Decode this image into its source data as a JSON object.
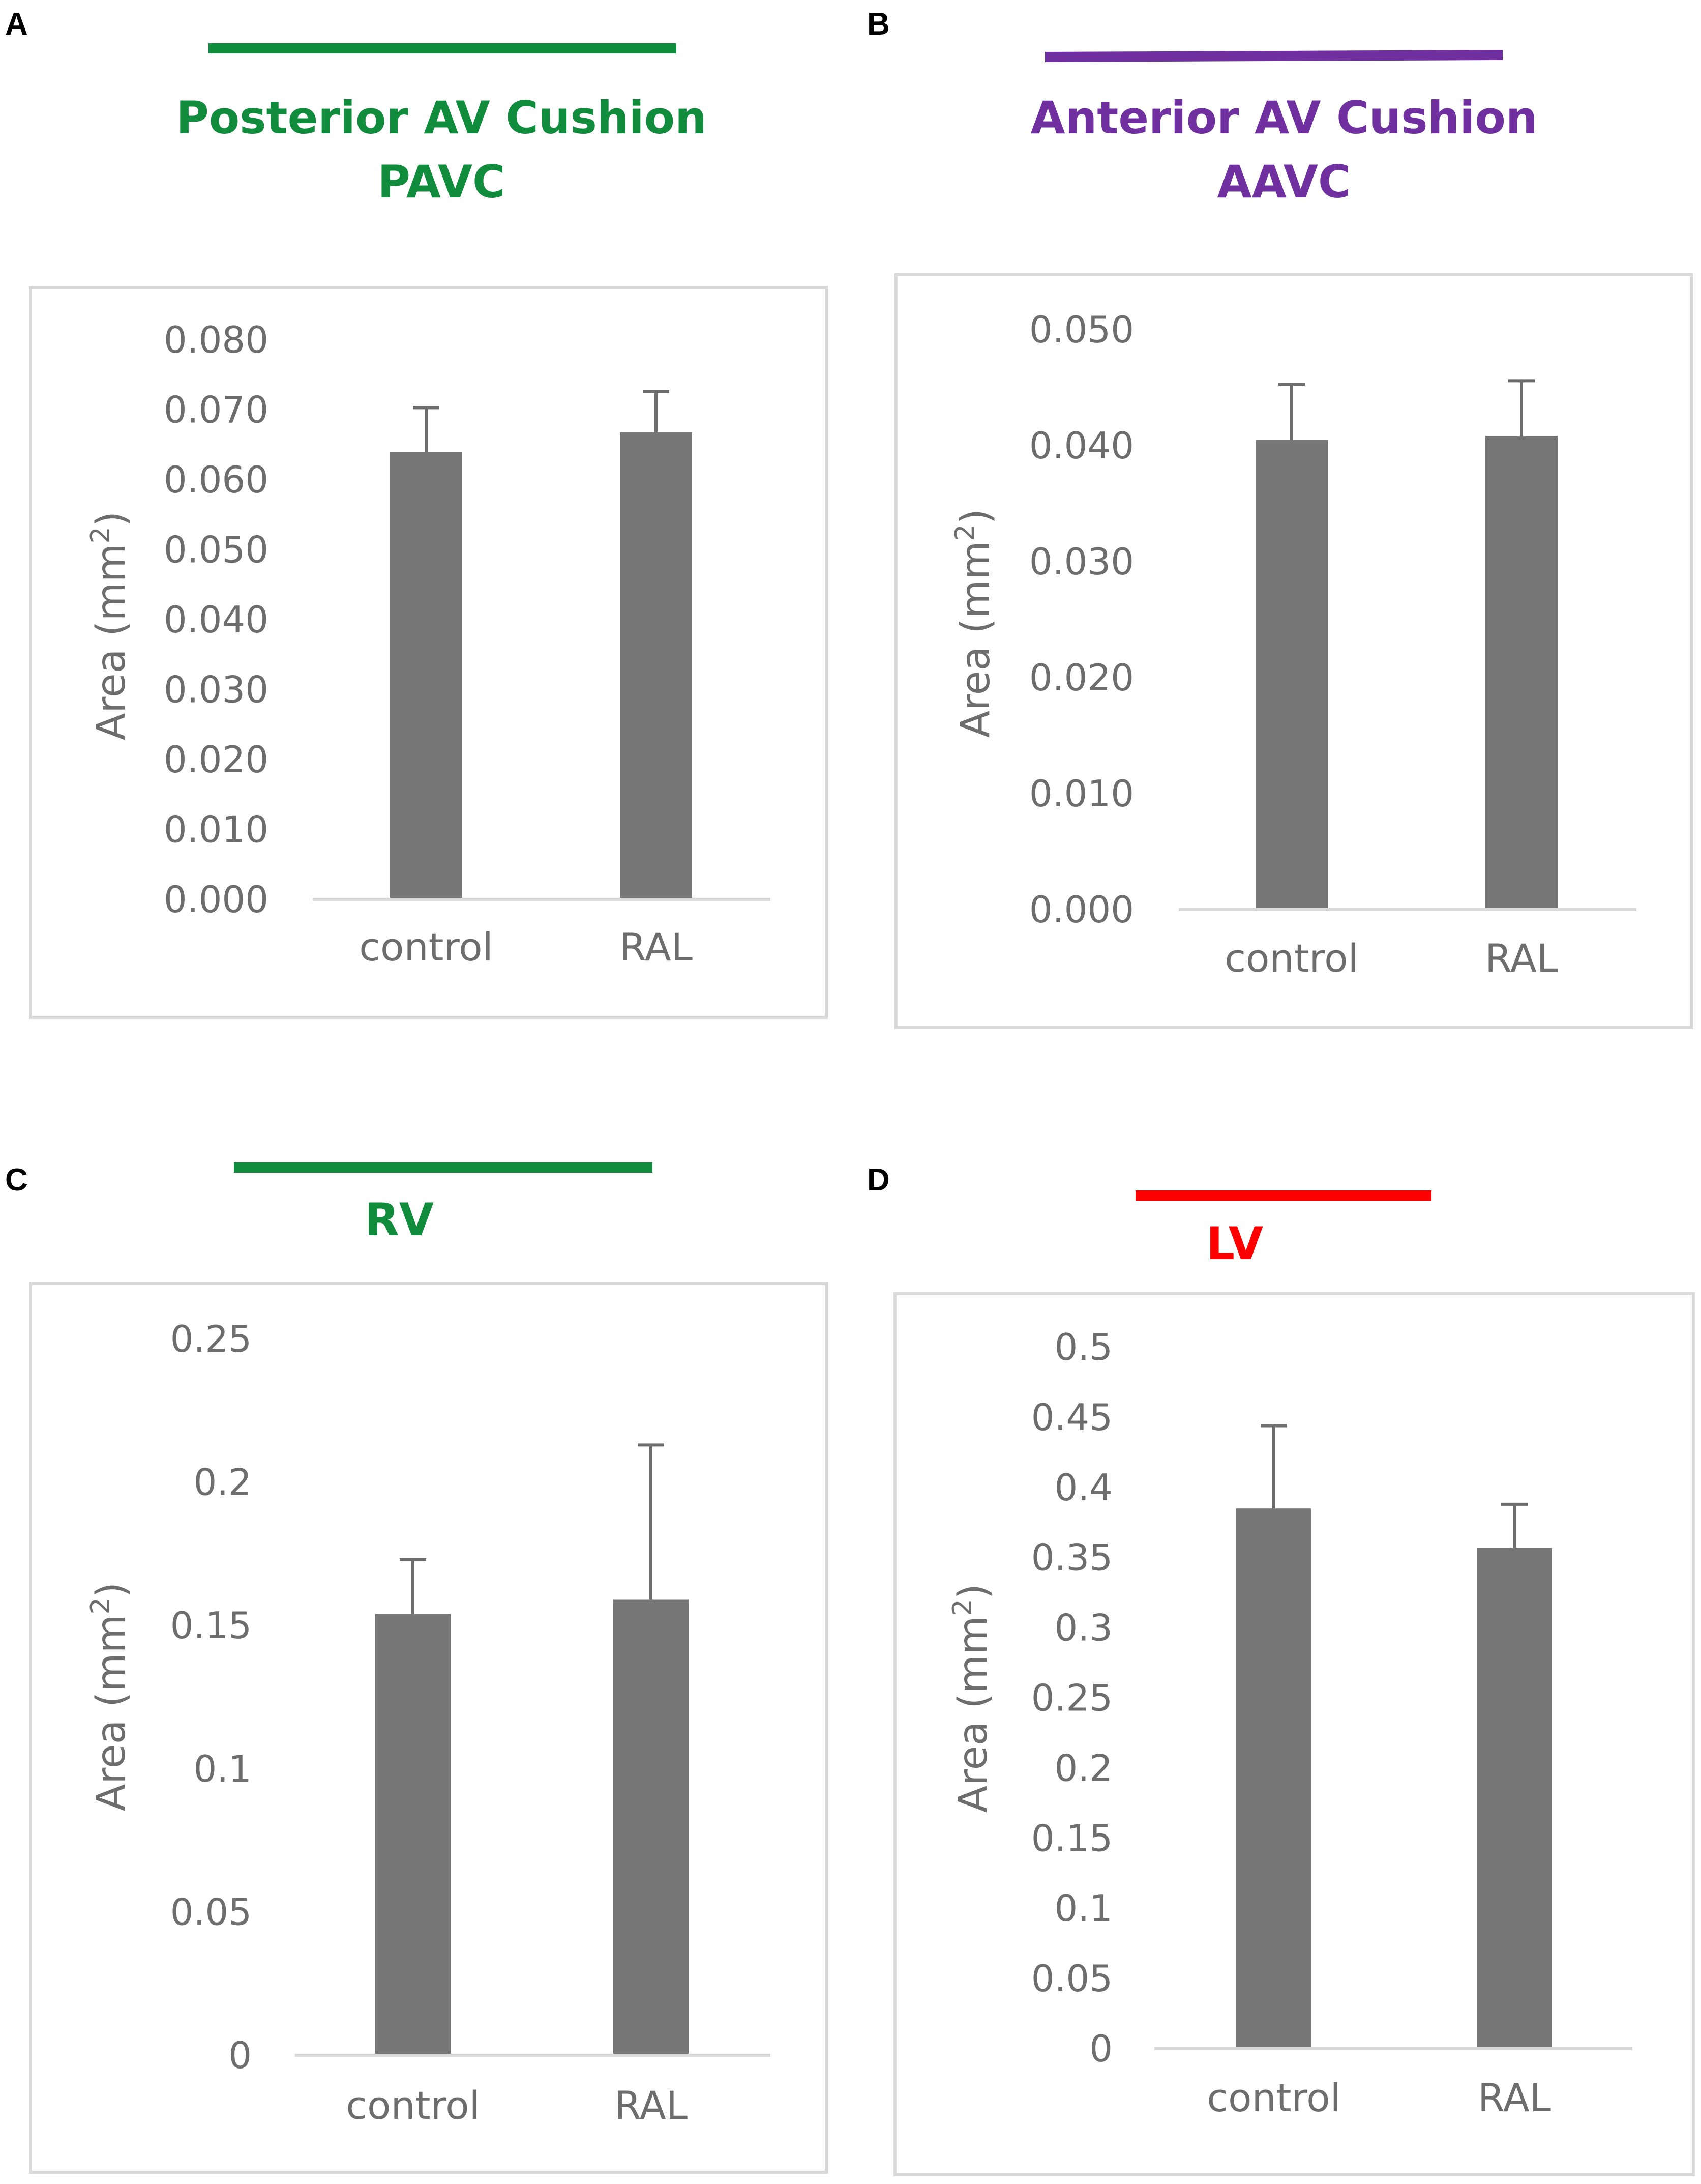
{
  "colors": {
    "bar": "#767676",
    "axis": "#d9d9d9",
    "frame": "#d9d9d9",
    "text": "#6d6d6d",
    "error_bar": "#6d6d6d"
  },
  "chart_data": [
    {
      "type": "bar",
      "panel": "A",
      "title_lines": [
        "Posterior AV Cushion",
        "PAVC"
      ],
      "title_color": "#118c3c",
      "accent_color": "#118c3c",
      "ylabel": "Area (mm",
      "ylabel_sup": "2",
      "ylabel_close": ")",
      "categories": [
        "control",
        "RAL"
      ],
      "values": [
        0.064,
        0.0668
      ],
      "errors": [
        0.0063,
        0.0058
      ],
      "ylim": [
        0,
        0.08
      ],
      "ticks": [
        0,
        0.01,
        0.02,
        0.03,
        0.04,
        0.05,
        0.06,
        0.07,
        0.08
      ],
      "tick_labels": [
        "0.000",
        "0.010",
        "0.020",
        "0.030",
        "0.040",
        "0.050",
        "0.060",
        "0.070",
        "0.080"
      ],
      "grid": false,
      "legend": "none"
    },
    {
      "type": "bar",
      "panel": "B",
      "title_lines": [
        "Anterior AV Cushion",
        "AAVC"
      ],
      "title_color": "#7030a0",
      "accent_color": "#7030a0",
      "ylabel": "Area (mm",
      "ylabel_sup": "2",
      "ylabel_close": ")",
      "categories": [
        "control",
        "RAL"
      ],
      "values": [
        0.0405,
        0.0408
      ],
      "errors": [
        0.0048,
        0.0048
      ],
      "ylim": [
        0,
        0.05
      ],
      "ticks": [
        0,
        0.01,
        0.02,
        0.03,
        0.04,
        0.05
      ],
      "tick_labels": [
        "0.000",
        "0.010",
        "0.020",
        "0.030",
        "0.040",
        "0.050"
      ],
      "grid": false,
      "legend": "none"
    },
    {
      "type": "bar",
      "panel": "C",
      "title_lines": [
        "RV"
      ],
      "title_color": "#118c3c",
      "accent_color": "#118c3c",
      "ylabel": "Area (mm",
      "ylabel_sup": "2",
      "ylabel_close": ")",
      "categories": [
        "control",
        "RAL"
      ],
      "values": [
        0.154,
        0.159
      ],
      "errors": [
        0.019,
        0.054
      ],
      "ylim": [
        0,
        0.25
      ],
      "ticks": [
        0,
        0.05,
        0.1,
        0.15,
        0.2,
        0.25
      ],
      "tick_labels": [
        "0",
        "0.05",
        "0.1",
        "0.15",
        "0.2",
        "0.25"
      ],
      "grid": false,
      "legend": "none"
    },
    {
      "type": "bar",
      "panel": "D",
      "title_lines": [
        "LV"
      ],
      "title_color": "#ff0000",
      "accent_color": "#ff0000",
      "ylabel": "Area (mm",
      "ylabel_sup": "2",
      "ylabel_close": ")",
      "categories": [
        "control",
        "RAL"
      ],
      "values": [
        0.385,
        0.357
      ],
      "errors": [
        0.059,
        0.031
      ],
      "ylim": [
        0,
        0.5
      ],
      "ticks": [
        0,
        0.05,
        0.1,
        0.15,
        0.2,
        0.25,
        0.3,
        0.35,
        0.4,
        0.45,
        0.5
      ],
      "tick_labels": [
        "0",
        "0.05",
        "0.1",
        "0.15",
        "0.2",
        "0.25",
        "0.3",
        "0.35",
        "0.4",
        "0.45",
        "0.5"
      ],
      "grid": false,
      "legend": "none"
    }
  ]
}
